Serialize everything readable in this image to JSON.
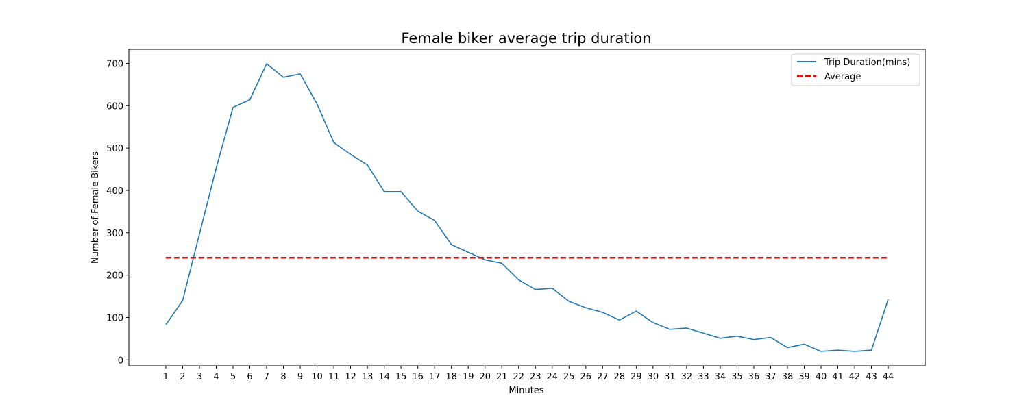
{
  "chart_data": {
    "type": "line",
    "title": "Female biker average trip duration",
    "xlabel": "Minutes",
    "ylabel": "Number of Female Bikers",
    "x": [
      1,
      2,
      3,
      4,
      5,
      6,
      7,
      8,
      9,
      10,
      11,
      12,
      13,
      14,
      15,
      16,
      17,
      18,
      19,
      20,
      21,
      22,
      23,
      24,
      25,
      26,
      27,
      28,
      29,
      30,
      31,
      32,
      33,
      34,
      35,
      36,
      37,
      38,
      39,
      40,
      41,
      42,
      43,
      44
    ],
    "x_tick_labels": [
      "1",
      "2",
      "3",
      "4",
      "5",
      "6",
      "7",
      "8",
      "9",
      "10",
      "11",
      "12",
      "13",
      "14",
      "15",
      "16",
      "17",
      "18",
      "19",
      "20",
      "21",
      "22",
      "23",
      "24",
      "25",
      "26",
      "27",
      "28",
      "29",
      "30",
      "31",
      "32",
      "33",
      "34",
      "35",
      "36",
      "37",
      "38",
      "39",
      "40",
      "41",
      "42",
      "43",
      "44"
    ],
    "xlim": [
      -1.2,
      46.2
    ],
    "ylim": [
      -14,
      733
    ],
    "y_ticks": [
      0,
      100,
      200,
      300,
      400,
      500,
      600,
      700
    ],
    "y_tick_labels": [
      "0",
      "100",
      "200",
      "300",
      "400",
      "500",
      "600",
      "700"
    ],
    "series": [
      {
        "name": "Trip Duration(mins)",
        "style": "solid",
        "color": "#1f77b4",
        "values": [
          83,
          140,
          297,
          453,
          596,
          614,
          699,
          667,
          675,
          604,
          513,
          485,
          460,
          397,
          397,
          351,
          329,
          272,
          254,
          236,
          228,
          189,
          166,
          169,
          138,
          123,
          112,
          94,
          115,
          88,
          72,
          75,
          63,
          51,
          56,
          48,
          53,
          29,
          37,
          20,
          23,
          20,
          23,
          143
        ]
      },
      {
        "name": "Average",
        "style": "dashed",
        "color": "#ff0000",
        "values": [
          241,
          241,
          241,
          241,
          241,
          241,
          241,
          241,
          241,
          241,
          241,
          241,
          241,
          241,
          241,
          241,
          241,
          241,
          241,
          241,
          241,
          241,
          241,
          241,
          241,
          241,
          241,
          241,
          241,
          241,
          241,
          241,
          241,
          241,
          241,
          241,
          241,
          241,
          241,
          241,
          241,
          241,
          241,
          241
        ]
      }
    ],
    "legend": {
      "placement": "upper right"
    },
    "grid": false
  }
}
